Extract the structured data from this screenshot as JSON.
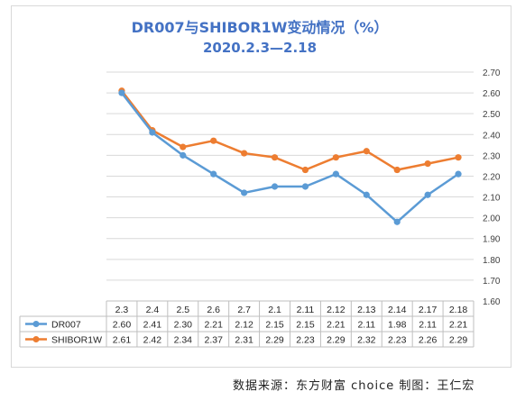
{
  "chart_data": {
    "type": "line",
    "title": "DR007与SHIBOR1W变动情况（%）",
    "subtitle": "2020.2.3—2.18",
    "categories": [
      "2.3",
      "2.4",
      "2.5",
      "2.6",
      "2.7",
      "2.1",
      "2.11",
      "2.12",
      "2.13",
      "2.14",
      "2.17",
      "2.18"
    ],
    "ylim": [
      1.6,
      2.7
    ],
    "yticks": [
      "1.60",
      "1.70",
      "1.80",
      "1.90",
      "2.00",
      "2.10",
      "2.20",
      "2.30",
      "2.40",
      "2.50",
      "2.60",
      "2.70"
    ],
    "grid": true,
    "legend": "data-table",
    "series": [
      {
        "name": "DR007",
        "color": "#5b9bd5",
        "values": [
          2.6,
          2.41,
          2.3,
          2.21,
          2.12,
          2.15,
          2.15,
          2.21,
          2.11,
          1.98,
          2.11,
          2.21
        ],
        "labels": [
          "2.60",
          "2.41",
          "2.30",
          "2.21",
          "2.12",
          "2.15",
          "2.15",
          "2.21",
          "2.11",
          "1.98",
          "2.11",
          "2.21"
        ]
      },
      {
        "name": "SHIBOR1W",
        "color": "#ed7d31",
        "values": [
          2.61,
          2.42,
          2.34,
          2.37,
          2.31,
          2.29,
          2.23,
          2.29,
          2.32,
          2.23,
          2.26,
          2.29
        ],
        "labels": [
          "2.61",
          "2.42",
          "2.34",
          "2.37",
          "2.31",
          "2.29",
          "2.23",
          "2.29",
          "2.32",
          "2.23",
          "2.26",
          "2.29"
        ]
      }
    ]
  },
  "footer": {
    "credit": "数据来源：东方财富 choice 制图：王仁宏"
  }
}
